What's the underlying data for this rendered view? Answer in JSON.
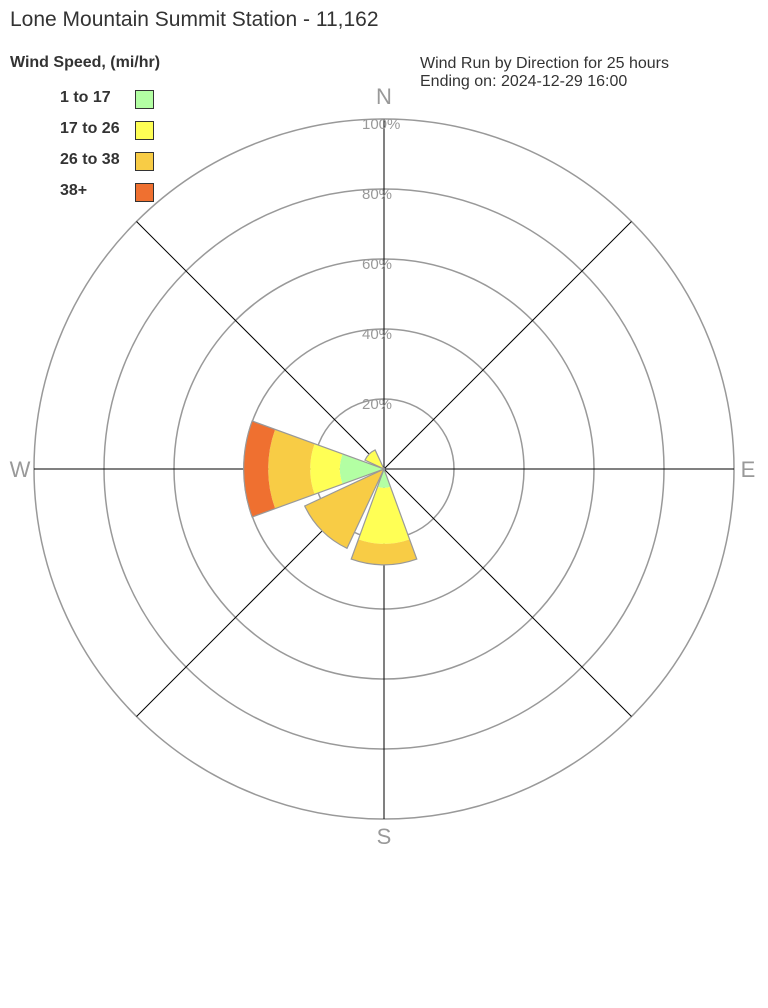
{
  "title": "Lone Mountain Summit Station - 11,162",
  "subtitle": [
    "Wind Run by Direction for 25 hours",
    "Ending on: 2024-12-29 16:00"
  ],
  "chart_data": {
    "type": "wind-rose",
    "legend_title": "Wind Speed, (mi/hr)",
    "legend_placement": "top-left",
    "compass_labels": {
      "N": "N",
      "E": "E",
      "S": "S",
      "W": "W"
    },
    "radial_ticks": [
      "20%",
      "40%",
      "60%",
      "80%",
      "100%"
    ],
    "radial_range": [
      0,
      100
    ],
    "bins": [
      {
        "label": "1 to 17",
        "color": "#b3ffa3"
      },
      {
        "label": "17 to 26",
        "color": "#ffff55"
      },
      {
        "label": "26 to 38",
        "color": "#f8cc45"
      },
      {
        "label": "38+",
        "color": "#ef7030"
      }
    ],
    "directions": [
      "N",
      "NE",
      "E",
      "SE",
      "S",
      "SW",
      "W",
      "NW"
    ],
    "percent_by_direction": {
      "N": [
        0,
        0,
        0,
        0
      ],
      "NE": [
        0,
        0,
        0,
        0
      ],
      "E": [
        0,
        0,
        0,
        0
      ],
      "SE": [
        0,
        0,
        0,
        0
      ],
      "S": [
        5.4,
        16,
        6,
        0
      ],
      "SW": [
        0,
        0,
        25,
        0
      ],
      "W": [
        12.6,
        8.5,
        12,
        7
      ],
      "NW": [
        0,
        6,
        0,
        0
      ]
    }
  }
}
